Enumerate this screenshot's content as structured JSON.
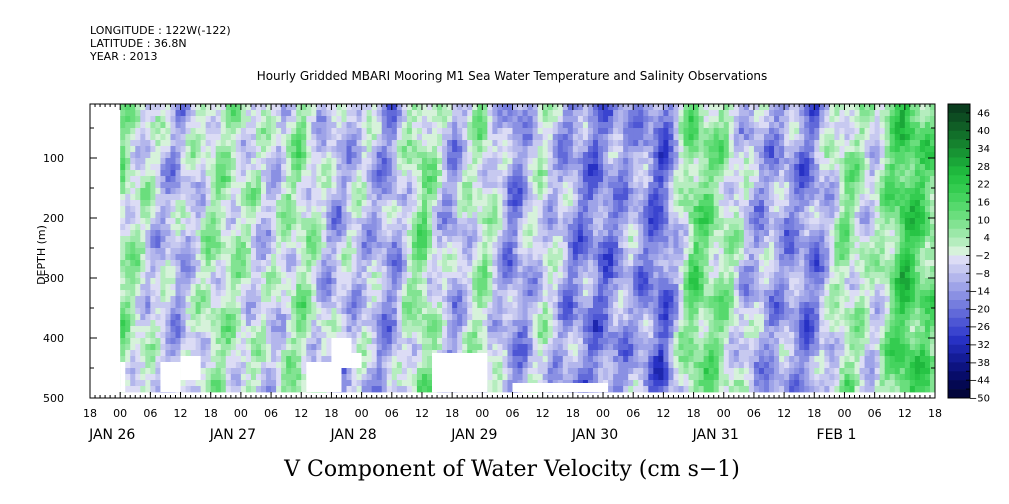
{
  "header": {
    "longitude": "LONGITUDE : 122W(-122)",
    "latitude": "LATITUDE : 36.8N",
    "year": "YEAR : 2013"
  },
  "chart_data": {
    "type": "heatmap",
    "title": "Hourly Gridded MBARI Mooring M1 Sea Water Temperature and Salinity Observations",
    "xlabel": "V Component of Water Velocity (cm s−1)",
    "ylabel": "DEPTH (m)",
    "y_range": [
      500,
      10
    ],
    "y_ticks": [
      100,
      200,
      300,
      400,
      500
    ],
    "x_range_hours": [
      -6,
      162
    ],
    "x_tick_labels": [
      "18",
      "00",
      "06",
      "12",
      "18",
      "00",
      "06",
      "12",
      "18",
      "00",
      "06",
      "12",
      "18",
      "00",
      "06",
      "12",
      "18",
      "00",
      "06",
      "12",
      "18",
      "00",
      "06",
      "12",
      "18",
      "00",
      "06",
      "12",
      "18"
    ],
    "date_labels": [
      "JAN 26",
      "JAN 27",
      "JAN 28",
      "JAN 29",
      "JAN 30",
      "JAN 31",
      "FEB  1"
    ],
    "colorbar": {
      "labels": [
        "46",
        "40",
        "34",
        "28",
        "22",
        "16",
        "10",
        "4",
        "−2",
        "−8",
        "−14",
        "−20",
        "−26",
        "−32",
        "−38",
        "−44",
        "−50"
      ],
      "levels": [
        49,
        46,
        43,
        40,
        37,
        34,
        31,
        28,
        25,
        22,
        19,
        16,
        13,
        10,
        7,
        4,
        1,
        -2,
        -5,
        -8,
        -11,
        -14,
        -17,
        -20,
        -23,
        -26,
        -29,
        -32,
        -35,
        -38,
        -41,
        -44,
        -47,
        -50
      ]
    },
    "data_extent": {
      "start_hour": 0,
      "end_hour": 162,
      "max_depth_m": 490
    },
    "column_means": [
      {
        "hour": 0,
        "v": 6
      },
      {
        "hour": 6,
        "v": -4
      },
      {
        "hour": 12,
        "v": -10
      },
      {
        "hour": 18,
        "v": 3
      },
      {
        "hour": 24,
        "v": 1
      },
      {
        "hour": 30,
        "v": -6
      },
      {
        "hour": 36,
        "v": 5
      },
      {
        "hour": 42,
        "v": -9
      },
      {
        "hour": 48,
        "v": -6
      },
      {
        "hour": 54,
        "v": -14
      },
      {
        "hour": 60,
        "v": 9
      },
      {
        "hour": 66,
        "v": -12
      },
      {
        "hour": 72,
        "v": 4
      },
      {
        "hour": 78,
        "v": -16
      },
      {
        "hour": 84,
        "v": -2
      },
      {
        "hour": 90,
        "v": -14
      },
      {
        "hour": 96,
        "v": -18
      },
      {
        "hour": 102,
        "v": -10
      },
      {
        "hour": 108,
        "v": -22
      },
      {
        "hour": 114,
        "v": 12
      },
      {
        "hour": 120,
        "v": 4
      },
      {
        "hour": 126,
        "v": -10
      },
      {
        "hour": 132,
        "v": -12
      },
      {
        "hour": 138,
        "v": -16
      },
      {
        "hour": 144,
        "v": 6
      },
      {
        "hour": 150,
        "v": -4
      },
      {
        "hour": 156,
        "v": 20
      },
      {
        "hour": 162,
        "v": 8
      }
    ],
    "missing_regions": [
      {
        "hour_start": 0,
        "hour_end": 1,
        "depth_top": 440,
        "depth_bottom": 490
      },
      {
        "hour_start": 8,
        "hour_end": 12,
        "depth_top": 440,
        "depth_bottom": 490
      },
      {
        "hour_start": 12,
        "hour_end": 16,
        "depth_top": 430,
        "depth_bottom": 470
      },
      {
        "hour_start": 37,
        "hour_end": 44,
        "depth_top": 440,
        "depth_bottom": 490
      },
      {
        "hour_start": 42,
        "hour_end": 46,
        "depth_top": 400,
        "depth_bottom": 450
      },
      {
        "hour_start": 46,
        "hour_end": 48,
        "depth_top": 425,
        "depth_bottom": 450
      },
      {
        "hour_start": 62,
        "hour_end": 73,
        "depth_top": 425,
        "depth_bottom": 490
      },
      {
        "hour_start": 78,
        "hour_end": 97,
        "depth_top": 475,
        "depth_bottom": 490
      }
    ],
    "colors": {
      "level_colors": [
        "#0a3d1e",
        "#0d4d22",
        "#105e26",
        "#12702a",
        "#15822e",
        "#179433",
        "#1aa638",
        "#1fb83d",
        "#27c445",
        "#34cc50",
        "#44d35e",
        "#56d96d",
        "#6ade7d",
        "#82e392",
        "#9be8a8",
        "#b5edbe",
        "#d6f2da",
        "#dcdcf5",
        "#c7c9f0",
        "#b3b6ec",
        "#9ea3e8",
        "#8a90e3",
        "#757dde",
        "#6169d9",
        "#4d56d4",
        "#3a44cf",
        "#2731c4",
        "#1d26ae",
        "#141c97",
        "#0d1380",
        "#070c69",
        "#040852",
        "#02053b"
      ],
      "missing": "#ffffff"
    }
  }
}
